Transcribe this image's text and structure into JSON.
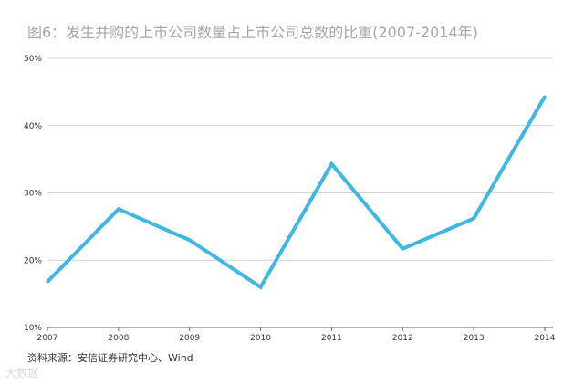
{
  "title": "图6：发生并购的上市公司数量占上市公司总数的比重(2007-2014年)",
  "source": "资料来源：安信证券研究中心、Wind",
  "watermark": "大数据",
  "chart_data": {
    "type": "line",
    "title": "图6：发生并购的上市公司数量占上市公司总数的比重(2007-2014年)",
    "categories": [
      "2007",
      "2008",
      "2009",
      "2010",
      "2011",
      "2012",
      "2013",
      "2014"
    ],
    "series": [
      {
        "values": [
          16.8,
          27.6,
          23.0,
          16.0,
          34.3,
          21.7,
          26.2,
          44.3
        ],
        "color": "#3db7e4"
      }
    ],
    "yticks": [
      "10%",
      "20%",
      "30%",
      "40%",
      "50%"
    ],
    "ylim": [
      10,
      50
    ],
    "grid": true,
    "xlabel": "",
    "ylabel": ""
  }
}
